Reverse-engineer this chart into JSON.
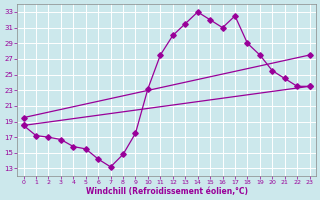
{
  "xlabel": "Windchill (Refroidissement éolien,°C)",
  "xlim": [
    -0.5,
    23.5
  ],
  "ylim": [
    12,
    34
  ],
  "xticks": [
    0,
    1,
    2,
    3,
    4,
    5,
    6,
    7,
    8,
    9,
    10,
    11,
    12,
    13,
    14,
    15,
    16,
    17,
    18,
    19,
    20,
    21,
    22,
    23
  ],
  "yticks": [
    13,
    15,
    17,
    19,
    21,
    23,
    25,
    27,
    29,
    31,
    33
  ],
  "bg_color": "#cce8ec",
  "line_color": "#990099",
  "grid_color": "#b8d8dc",
  "figsize": [
    3.2,
    2.0
  ],
  "dpi": 100,
  "curve_x": [
    0,
    1,
    2,
    3,
    4,
    5,
    6,
    7,
    8,
    9,
    10,
    11,
    12,
    13,
    14,
    15,
    16,
    17,
    18,
    19,
    20,
    21,
    22,
    23
  ],
  "curve_y": [
    18.5,
    17.2,
    17.0,
    16.7,
    15.8,
    15.5,
    14.2,
    13.2,
    14.8,
    17.5,
    23.2,
    27.5,
    30.0,
    31.5,
    33.0,
    32.0,
    31.0,
    32.5,
    29.0,
    27.5,
    25.5,
    24.5,
    23.5,
    23.5
  ],
  "line1_x": [
    0,
    23
  ],
  "line1_y": [
    19.5,
    27.5
  ],
  "line2_x": [
    0,
    23
  ],
  "line2_y": [
    18.5,
    23.5
  ]
}
